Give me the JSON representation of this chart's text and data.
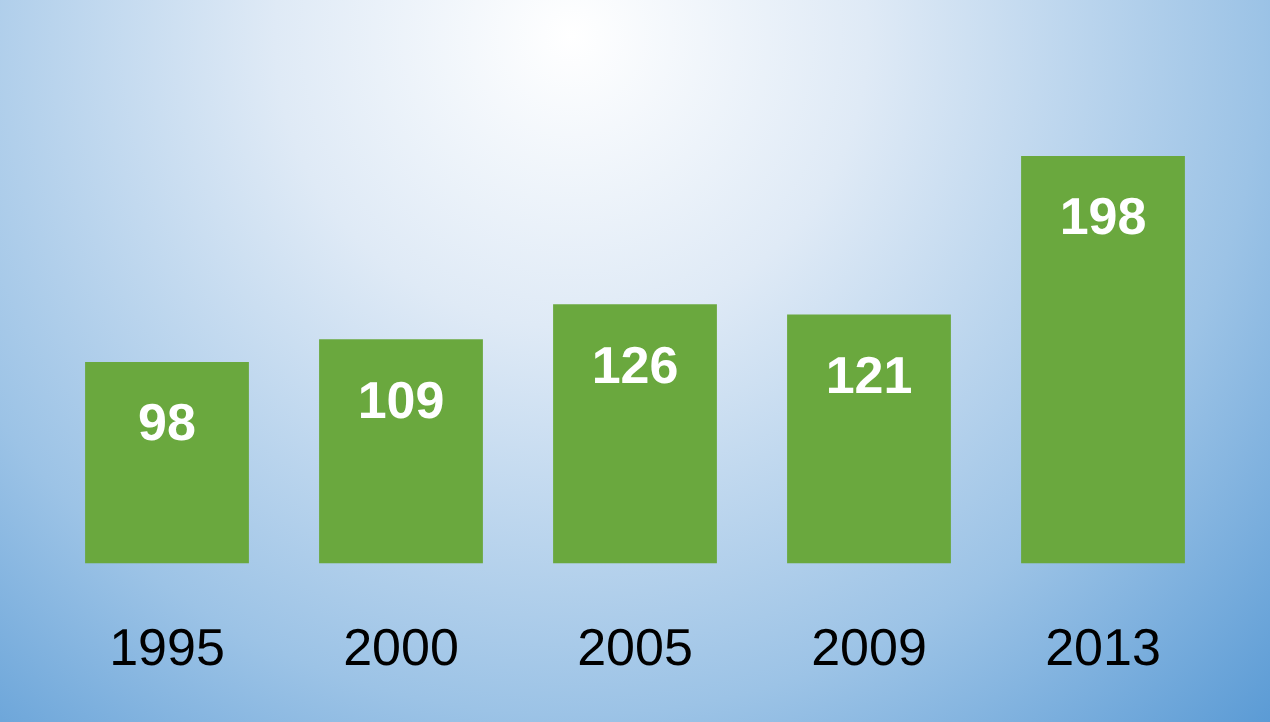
{
  "chart_data": {
    "type": "bar",
    "categories": [
      "1995",
      "2000",
      "2005",
      "2009",
      "2013"
    ],
    "values": [
      98,
      109,
      126,
      121,
      198
    ],
    "color": "#6aa83e",
    "tick_labels": "x",
    "grid": false,
    "legend": false,
    "data_labels": true
  }
}
